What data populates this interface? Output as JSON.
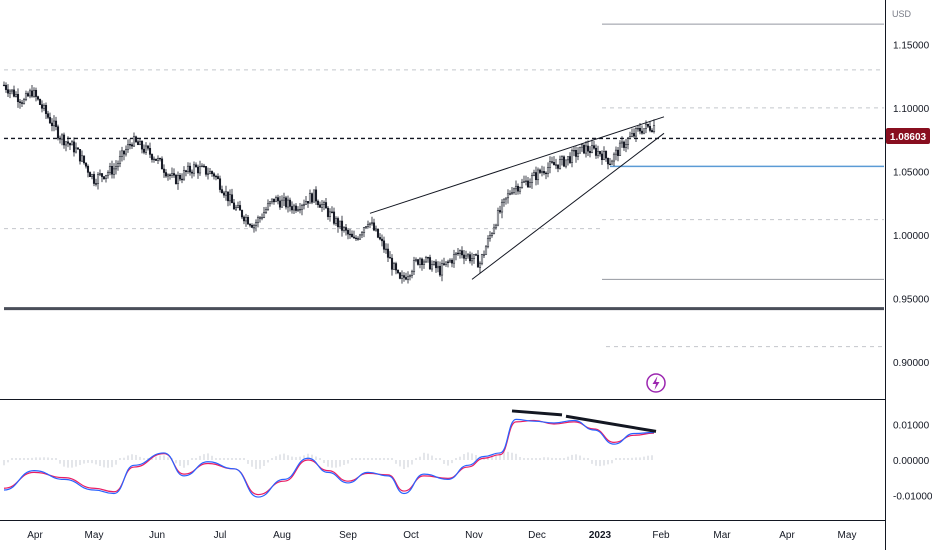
{
  "chart_data": [
    {
      "type": "candlestick",
      "currency_label": "USD",
      "last_price_label": "1.08603",
      "ylim": [
        0.87,
        1.185
      ],
      "y_ticks": [
        {
          "value": 1.15,
          "label": "1.15000"
        },
        {
          "value": 1.1,
          "label": "1.10000"
        },
        {
          "value": 1.05,
          "label": "1.05000"
        },
        {
          "value": 1.0,
          "label": "1.00000"
        },
        {
          "value": 0.95,
          "label": "0.95000"
        },
        {
          "value": 0.9,
          "label": "0.90000"
        }
      ],
      "x_ticks": [
        "Apr",
        "May",
        "Jun",
        "Jul",
        "Aug",
        "Sep",
        "Oct",
        "Nov",
        "Dec",
        "2023",
        "Feb",
        "Mar",
        "Apr",
        "May"
      ],
      "price_path": [
        {
          "day": 0,
          "close": 1.118
        },
        {
          "day": 10,
          "close": 1.105
        },
        {
          "day": 14,
          "close": 1.113
        },
        {
          "day": 28,
          "close": 1.078
        },
        {
          "day": 36,
          "close": 1.067
        },
        {
          "day": 45,
          "close": 1.044
        },
        {
          "day": 55,
          "close": 1.052
        },
        {
          "day": 64,
          "close": 1.074
        },
        {
          "day": 75,
          "close": 1.062
        },
        {
          "day": 85,
          "close": 1.043
        },
        {
          "day": 95,
          "close": 1.053
        },
        {
          "day": 105,
          "close": 1.048
        },
        {
          "day": 115,
          "close": 1.022
        },
        {
          "day": 125,
          "close": 1.008
        },
        {
          "day": 135,
          "close": 1.028
        },
        {
          "day": 145,
          "close": 1.022
        },
        {
          "day": 155,
          "close": 1.031
        },
        {
          "day": 165,
          "close": 1.012
        },
        {
          "day": 175,
          "close": 0.995
        },
        {
          "day": 182,
          "close": 1.012
        },
        {
          "day": 190,
          "close": 0.99
        },
        {
          "day": 198,
          "close": 0.963
        },
        {
          "day": 208,
          "close": 0.982
        },
        {
          "day": 218,
          "close": 0.972
        },
        {
          "day": 228,
          "close": 0.987
        },
        {
          "day": 238,
          "close": 0.978
        },
        {
          "day": 246,
          "close": 1.012
        },
        {
          "day": 254,
          "close": 1.037
        },
        {
          "day": 262,
          "close": 1.042
        },
        {
          "day": 270,
          "close": 1.052
        },
        {
          "day": 280,
          "close": 1.058
        },
        {
          "day": 290,
          "close": 1.068
        },
        {
          "day": 298,
          "close": 1.065
        },
        {
          "day": 303,
          "close": 1.058
        },
        {
          "day": 310,
          "close": 1.072
        },
        {
          "day": 318,
          "close": 1.083
        },
        {
          "day": 325,
          "close": 1.086
        }
      ],
      "horizontal_levels": [
        {
          "value": 1.166,
          "style": "solid-gray",
          "from_day": 299,
          "to_day": 440
        },
        {
          "value": 1.13,
          "style": "dashed-light",
          "from_day": 0,
          "to_day": 440
        },
        {
          "value": 1.1,
          "style": "dashed-light",
          "from_day": 299,
          "to_day": 440
        },
        {
          "value": 1.076,
          "style": "dashed-dark",
          "from_day": 0,
          "to_day": 440
        },
        {
          "value": 1.054,
          "style": "solid-blue",
          "from_day": 303,
          "to_day": 440
        },
        {
          "value": 1.012,
          "style": "dashed-light",
          "from_day": 299,
          "to_day": 440
        },
        {
          "value": 1.005,
          "style": "dashed-light",
          "from_day": 0,
          "to_day": 299
        },
        {
          "value": 0.965,
          "style": "solid-gray",
          "from_day": 299,
          "to_day": 440
        },
        {
          "value": 0.942,
          "style": "solid-thick",
          "from_day": 0,
          "to_day": 440
        },
        {
          "value": 0.912,
          "style": "dashed-light",
          "from_day": 301,
          "to_day": 440
        }
      ],
      "trendlines": [
        {
          "from": {
            "day": 183,
            "value": 1.017
          },
          "to": {
            "day": 330,
            "value": 1.093
          }
        },
        {
          "from": {
            "day": 234,
            "value": 0.965
          },
          "to": {
            "day": 330,
            "value": 1.08
          }
        }
      ],
      "colors": {
        "up": "#ffffff",
        "down": "#131722",
        "wick": "#131722",
        "last_price_bg": "#880e1f",
        "level_blue": "#5b9bd5",
        "event_icon": "#9c27b0"
      }
    },
    {
      "type": "line",
      "indicator": "MACD",
      "ylim": [
        -0.017,
        0.017
      ],
      "y_ticks": [
        {
          "value": 0.01,
          "label": "0.01000"
        },
        {
          "value": 0.0,
          "label": "0.00000"
        },
        {
          "value": -0.01,
          "label": "-0.01000"
        }
      ],
      "series": [
        {
          "color": "#2962ff",
          "points": [
            {
              "day": 0,
              "value": -0.0085
            },
            {
              "day": 15,
              "value": -0.003
            },
            {
              "day": 30,
              "value": -0.0055
            },
            {
              "day": 45,
              "value": -0.0085
            },
            {
              "day": 55,
              "value": -0.0095
            },
            {
              "day": 65,
              "value": -0.0015
            },
            {
              "day": 80,
              "value": 0.002
            },
            {
              "day": 90,
              "value": -0.0045
            },
            {
              "day": 102,
              "value": -0.0005
            },
            {
              "day": 115,
              "value": -0.0025
            },
            {
              "day": 127,
              "value": -0.0105
            },
            {
              "day": 140,
              "value": -0.0055
            },
            {
              "day": 152,
              "value": 0.0005
            },
            {
              "day": 162,
              "value": -0.0035
            },
            {
              "day": 172,
              "value": -0.0065
            },
            {
              "day": 182,
              "value": -0.0035
            },
            {
              "day": 192,
              "value": -0.0045
            },
            {
              "day": 200,
              "value": -0.0095
            },
            {
              "day": 210,
              "value": -0.004
            },
            {
              "day": 222,
              "value": -0.0055
            },
            {
              "day": 232,
              "value": -0.0015
            },
            {
              "day": 240,
              "value": 0.001
            },
            {
              "day": 248,
              "value": 0.002
            },
            {
              "day": 256,
              "value": 0.0115
            },
            {
              "day": 265,
              "value": 0.011
            },
            {
              "day": 275,
              "value": 0.0105
            },
            {
              "day": 285,
              "value": 0.0112
            },
            {
              "day": 295,
              "value": 0.0085
            },
            {
              "day": 305,
              "value": 0.0045
            },
            {
              "day": 315,
              "value": 0.0075
            },
            {
              "day": 325,
              "value": 0.0078
            }
          ]
        },
        {
          "color": "#e91e63",
          "points": [
            {
              "day": 0,
              "value": -0.008
            },
            {
              "day": 15,
              "value": -0.0035
            },
            {
              "day": 30,
              "value": -0.005
            },
            {
              "day": 45,
              "value": -0.008
            },
            {
              "day": 55,
              "value": -0.009
            },
            {
              "day": 65,
              "value": -0.002
            },
            {
              "day": 80,
              "value": 0.0018
            },
            {
              "day": 90,
              "value": -0.004
            },
            {
              "day": 102,
              "value": -0.001
            },
            {
              "day": 115,
              "value": -0.0025
            },
            {
              "day": 127,
              "value": -0.0098
            },
            {
              "day": 140,
              "value": -0.006
            },
            {
              "day": 152,
              "value": 0.0
            },
            {
              "day": 162,
              "value": -0.003
            },
            {
              "day": 172,
              "value": -0.006
            },
            {
              "day": 182,
              "value": -0.0038
            },
            {
              "day": 192,
              "value": -0.0042
            },
            {
              "day": 200,
              "value": -0.0088
            },
            {
              "day": 210,
              "value": -0.0045
            },
            {
              "day": 222,
              "value": -0.0052
            },
            {
              "day": 232,
              "value": -0.002
            },
            {
              "day": 240,
              "value": 0.0005
            },
            {
              "day": 248,
              "value": 0.0015
            },
            {
              "day": 256,
              "value": 0.0108
            },
            {
              "day": 265,
              "value": 0.0112
            },
            {
              "day": 275,
              "value": 0.0102
            },
            {
              "day": 285,
              "value": 0.0108
            },
            {
              "day": 295,
              "value": 0.0088
            },
            {
              "day": 305,
              "value": 0.005
            },
            {
              "day": 315,
              "value": 0.007
            },
            {
              "day": 325,
              "value": 0.0076
            }
          ]
        }
      ],
      "trendlines": [
        {
          "from": {
            "day": 254,
            "value": 0.0139
          },
          "to": {
            "day": 279,
            "value": 0.0128
          }
        },
        {
          "from": {
            "day": 281,
            "value": 0.0124
          },
          "to": {
            "day": 326,
            "value": 0.0081
          }
        }
      ]
    }
  ]
}
